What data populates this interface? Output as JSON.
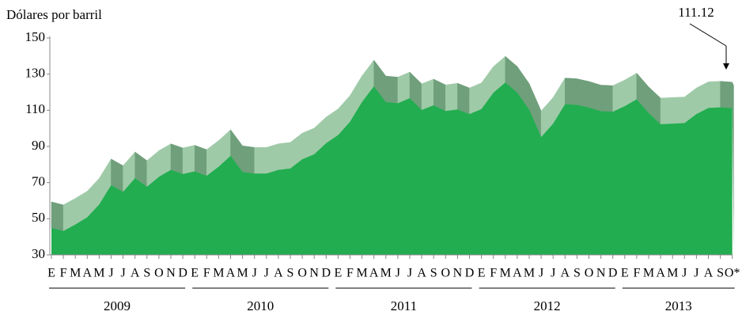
{
  "chart_data": {
    "type": "area3d",
    "y_label": "Dólares por barril",
    "categories": [
      "E",
      "F",
      "M",
      "A",
      "M",
      "J",
      "J",
      "A",
      "S",
      "O",
      "N",
      "D",
      "E",
      "F",
      "M",
      "A",
      "M",
      "J",
      "J",
      "A",
      "S",
      "O",
      "N",
      "D",
      "E",
      "F",
      "M",
      "A",
      "M",
      "J",
      "J",
      "A",
      "S",
      "O",
      "N",
      "D",
      "E",
      "F",
      "M",
      "A",
      "M",
      "J",
      "J",
      "A",
      "S",
      "O",
      "N",
      "D",
      "E",
      "F",
      "M",
      "A",
      "M",
      "J",
      "J",
      "A",
      "S",
      "O*"
    ],
    "years": [
      "2009",
      "2010",
      "2011",
      "2012",
      "2013"
    ],
    "series": [
      {
        "color": "#22ad50",
        "values": [
          44.9,
          43.2,
          46.8,
          50.8,
          57.9,
          68.6,
          64.9,
          72.5,
          67.7,
          73.2,
          77.0,
          74.7,
          76.2,
          73.8,
          78.8,
          84.8,
          75.9,
          75.0,
          75.0,
          77.0,
          77.8,
          82.9,
          85.7,
          91.8,
          96.3,
          103.7,
          114.6,
          123.3,
          114.5,
          113.9,
          116.7,
          110.2,
          112.8,
          109.6,
          110.5,
          107.9,
          110.7,
          119.7,
          125.4,
          119.8,
          110.3,
          95.2,
          102.6,
          113.4,
          113.0,
          111.5,
          109.5,
          109.2,
          112.3,
          116.1,
          108.5,
          102.3,
          102.6,
          102.9,
          107.9,
          111.3,
          111.6,
          111.12
        ]
      }
    ],
    "ylim": [
      30,
      150
    ],
    "yticks": [
      30,
      50,
      70,
      90,
      110,
      130,
      150
    ]
  }
}
